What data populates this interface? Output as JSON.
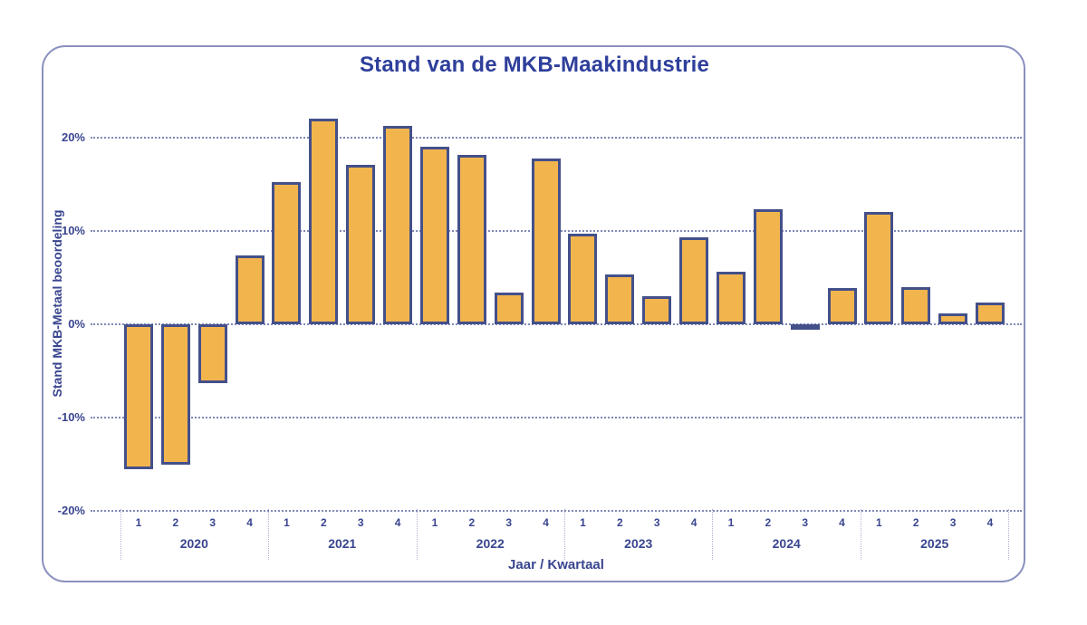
{
  "chart_data": {
    "type": "bar",
    "title": "Stand van de MKB-Maakindustrie",
    "xlabel": "Jaar / Kwartaal",
    "ylabel": "Stand MKB-Metaal beoordeling",
    "ylim": [
      -20,
      22
    ],
    "grid": "horizontal dotted",
    "legend_position": "none",
    "y_tick_values": [
      20,
      10,
      0,
      -10,
      -20
    ],
    "y_tick_labels": [
      "20%",
      "10%",
      "0%",
      "-10%",
      "-20%"
    ],
    "quarter_labels": [
      "1",
      "2",
      "3",
      "4"
    ],
    "series": [
      {
        "year": "2020",
        "values": [
          -15.5,
          -15.0,
          -6.3,
          7.4
        ]
      },
      {
        "year": "2021",
        "values": [
          15.2,
          22.0,
          17.1,
          21.3
        ]
      },
      {
        "year": "2022",
        "values": [
          19.0,
          18.2,
          3.4,
          17.8
        ]
      },
      {
        "year": "2023",
        "values": [
          9.7,
          5.3,
          3.0,
          9.3
        ]
      },
      {
        "year": "2024",
        "values": [
          5.6,
          12.3,
          -0.1,
          3.9
        ]
      },
      {
        "year": "2025",
        "values": [
          12.0,
          4.0,
          1.2,
          2.3
        ]
      }
    ],
    "colors": {
      "bar_fill": "#F2B54E",
      "bar_border": "#44508A",
      "grid": "#6B74AB",
      "text": "#39458F",
      "title": "#2E3F9B",
      "frame": "#8A90BE"
    }
  }
}
